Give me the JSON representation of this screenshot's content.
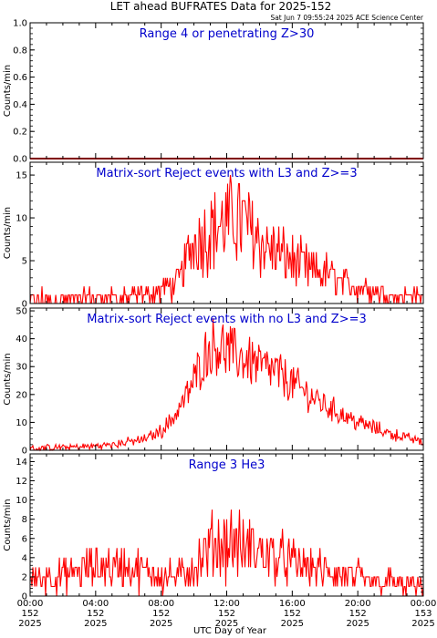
{
  "title": "LET ahead BUFRATES Data for 2025-152",
  "timestamp": "Sat Jun  7 09:55:24 2025 ACE Science Center",
  "xlabel": "UTC Day of Year",
  "colors": {
    "series": "#ff0000",
    "panel_title": "#0000cc",
    "axis": "#000000",
    "background": "#ffffff"
  },
  "x_ticks": [
    {
      "hour": 0,
      "time": "00:00",
      "doy": "152",
      "year": "2025"
    },
    {
      "hour": 4,
      "time": "04:00",
      "doy": "152",
      "year": "2025"
    },
    {
      "hour": 8,
      "time": "08:00",
      "doy": "152",
      "year": "2025"
    },
    {
      "hour": 12,
      "time": "12:00",
      "doy": "152",
      "year": "2025"
    },
    {
      "hour": 16,
      "time": "16:00",
      "doy": "152",
      "year": "2025"
    },
    {
      "hour": 20,
      "time": "20:00",
      "doy": "152",
      "year": "2025"
    },
    {
      "hour": 24,
      "time": "00:00",
      "doy": "153",
      "year": "2025"
    }
  ],
  "chart_data": [
    {
      "type": "line",
      "title": "Range 4 or  penetrating Z>30",
      "ylabel": "Counts/min",
      "xlim": [
        0,
        24
      ],
      "ylim": [
        0,
        1.0
      ],
      "yticks": [
        "0.0",
        "0.2",
        "0.4",
        "0.6",
        "0.8",
        "1.0"
      ],
      "ytick_values": [
        0,
        0.2,
        0.4,
        0.6,
        0.8,
        1.0
      ],
      "series": [
        {
          "x": [
            0,
            24
          ],
          "y": [
            0,
            0
          ]
        }
      ]
    },
    {
      "type": "line",
      "title": "Matrix-sort Reject events with L3 and Z>=3",
      "ylabel": "Counts/min",
      "xlim": [
        0,
        24
      ],
      "ylim": [
        0,
        16.5
      ],
      "yticks": [
        "0",
        "5",
        "10",
        "15"
      ],
      "ytick_values": [
        0,
        5,
        10,
        15
      ],
      "series": [
        {
          "x": [
            0,
            1,
            2,
            3,
            4,
            5,
            6,
            7,
            8,
            9,
            9.5,
            10,
            10.5,
            11,
            11.5,
            12,
            12.5,
            13,
            13.5,
            14,
            14.5,
            15,
            15.5,
            16,
            17,
            18,
            19,
            20,
            21,
            22,
            23,
            24
          ],
          "y": [
            0.5,
            0.6,
            0.5,
            0.6,
            0.7,
            0.6,
            0.8,
            1.0,
            1.5,
            2.5,
            5,
            7,
            8,
            8.5,
            9,
            9.5,
            10,
            9.5,
            8.5,
            7.5,
            6.5,
            6,
            5.5,
            5,
            4,
            3.5,
            2.5,
            2,
            1.5,
            1,
            1,
            0.8
          ]
        }
      ]
    },
    {
      "type": "line",
      "title": "Matrix-sort Reject events with no L3 and Z>=3",
      "ylabel": "Counts/min",
      "xlim": [
        0,
        24
      ],
      "ylim": [
        0,
        51
      ],
      "yticks": [
        "0",
        "10",
        "20",
        "30",
        "40",
        "50"
      ],
      "ytick_values": [
        0,
        10,
        20,
        30,
        40,
        50
      ],
      "series": [
        {
          "x": [
            0,
            1,
            2,
            3,
            4,
            5,
            6,
            7,
            8,
            8.5,
            9,
            9.5,
            10,
            10.5,
            11,
            11.5,
            12,
            12.5,
            13,
            13.5,
            14,
            14.5,
            15,
            16,
            17,
            18,
            19,
            20,
            21,
            22,
            23,
            24
          ],
          "y": [
            0.5,
            0.8,
            1,
            1.2,
            1.5,
            2,
            3,
            4,
            7,
            10,
            14,
            19,
            25,
            32,
            37,
            38,
            36,
            34,
            33,
            32,
            30,
            29,
            28,
            24,
            20,
            16,
            13,
            10,
            8,
            6,
            4.5,
            3
          ]
        }
      ]
    },
    {
      "type": "line",
      "title": "Range 3 He3",
      "ylabel": "Counts/min",
      "xlim": [
        0,
        24
      ],
      "ylim": [
        0,
        14.8
      ],
      "yticks": [
        "0",
        "2",
        "4",
        "6",
        "8",
        "10",
        "12",
        "14"
      ],
      "ytick_values": [
        0,
        2,
        4,
        6,
        8,
        10,
        12,
        14
      ],
      "series": [
        {
          "x": [
            0,
            1,
            2,
            3,
            4,
            5,
            6,
            7,
            7.5,
            8,
            9,
            10,
            10.5,
            11,
            11.5,
            12,
            12.5,
            13,
            13.5,
            14,
            15,
            16,
            17,
            18,
            19,
            20,
            21,
            22,
            23,
            24
          ],
          "y": [
            1.5,
            2,
            2,
            2.5,
            3,
            3,
            3,
            2.5,
            2.5,
            2,
            2,
            3,
            4,
            5,
            5.5,
            5.5,
            5.5,
            5,
            5,
            4.5,
            4,
            3.5,
            3,
            2.5,
            2,
            2,
            1.5,
            1.5,
            1,
            1
          ]
        }
      ]
    }
  ]
}
